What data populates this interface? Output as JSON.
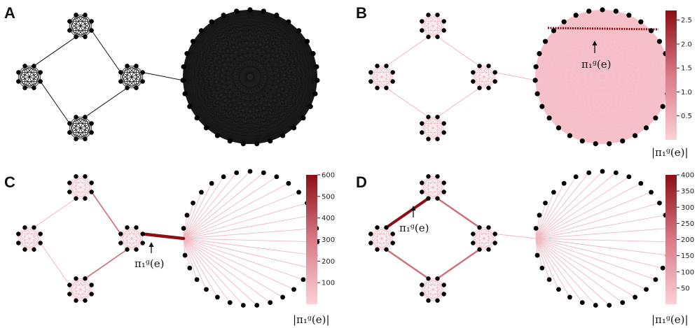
{
  "colors": {
    "node": "#000000",
    "edge_dark": "#111111",
    "edge_light": "#f2b8c2",
    "edge_mid": "#cf6e7c",
    "edge_max": "#8b0f14",
    "cb_low": "#f9c6cf",
    "cb_high": "#8b0f14"
  },
  "panels": [
    {
      "letter": "A"
    },
    {
      "letter": "B"
    },
    {
      "letter": "C"
    },
    {
      "letter": "D"
    }
  ],
  "annotations": {
    "pi_label": "π₁ᵍ(e)",
    "colorbar_label": "|π₁ᵍ(e)|"
  },
  "colorbars": {
    "B": {
      "max": 2.7,
      "ticks": [
        "2.5",
        "2.0",
        "1.5",
        "1.0",
        "0.5"
      ]
    },
    "C": {
      "max": 600,
      "ticks": [
        "600",
        "500",
        "400",
        "300",
        "200",
        "100"
      ]
    },
    "D": {
      "max": 400,
      "ticks": [
        "400",
        "350",
        "300",
        "250",
        "200",
        "150",
        "100",
        "50"
      ]
    }
  },
  "graph": {
    "clique_size": 8,
    "num_small_cliques": 4,
    "big_clique_size": 31
  }
}
